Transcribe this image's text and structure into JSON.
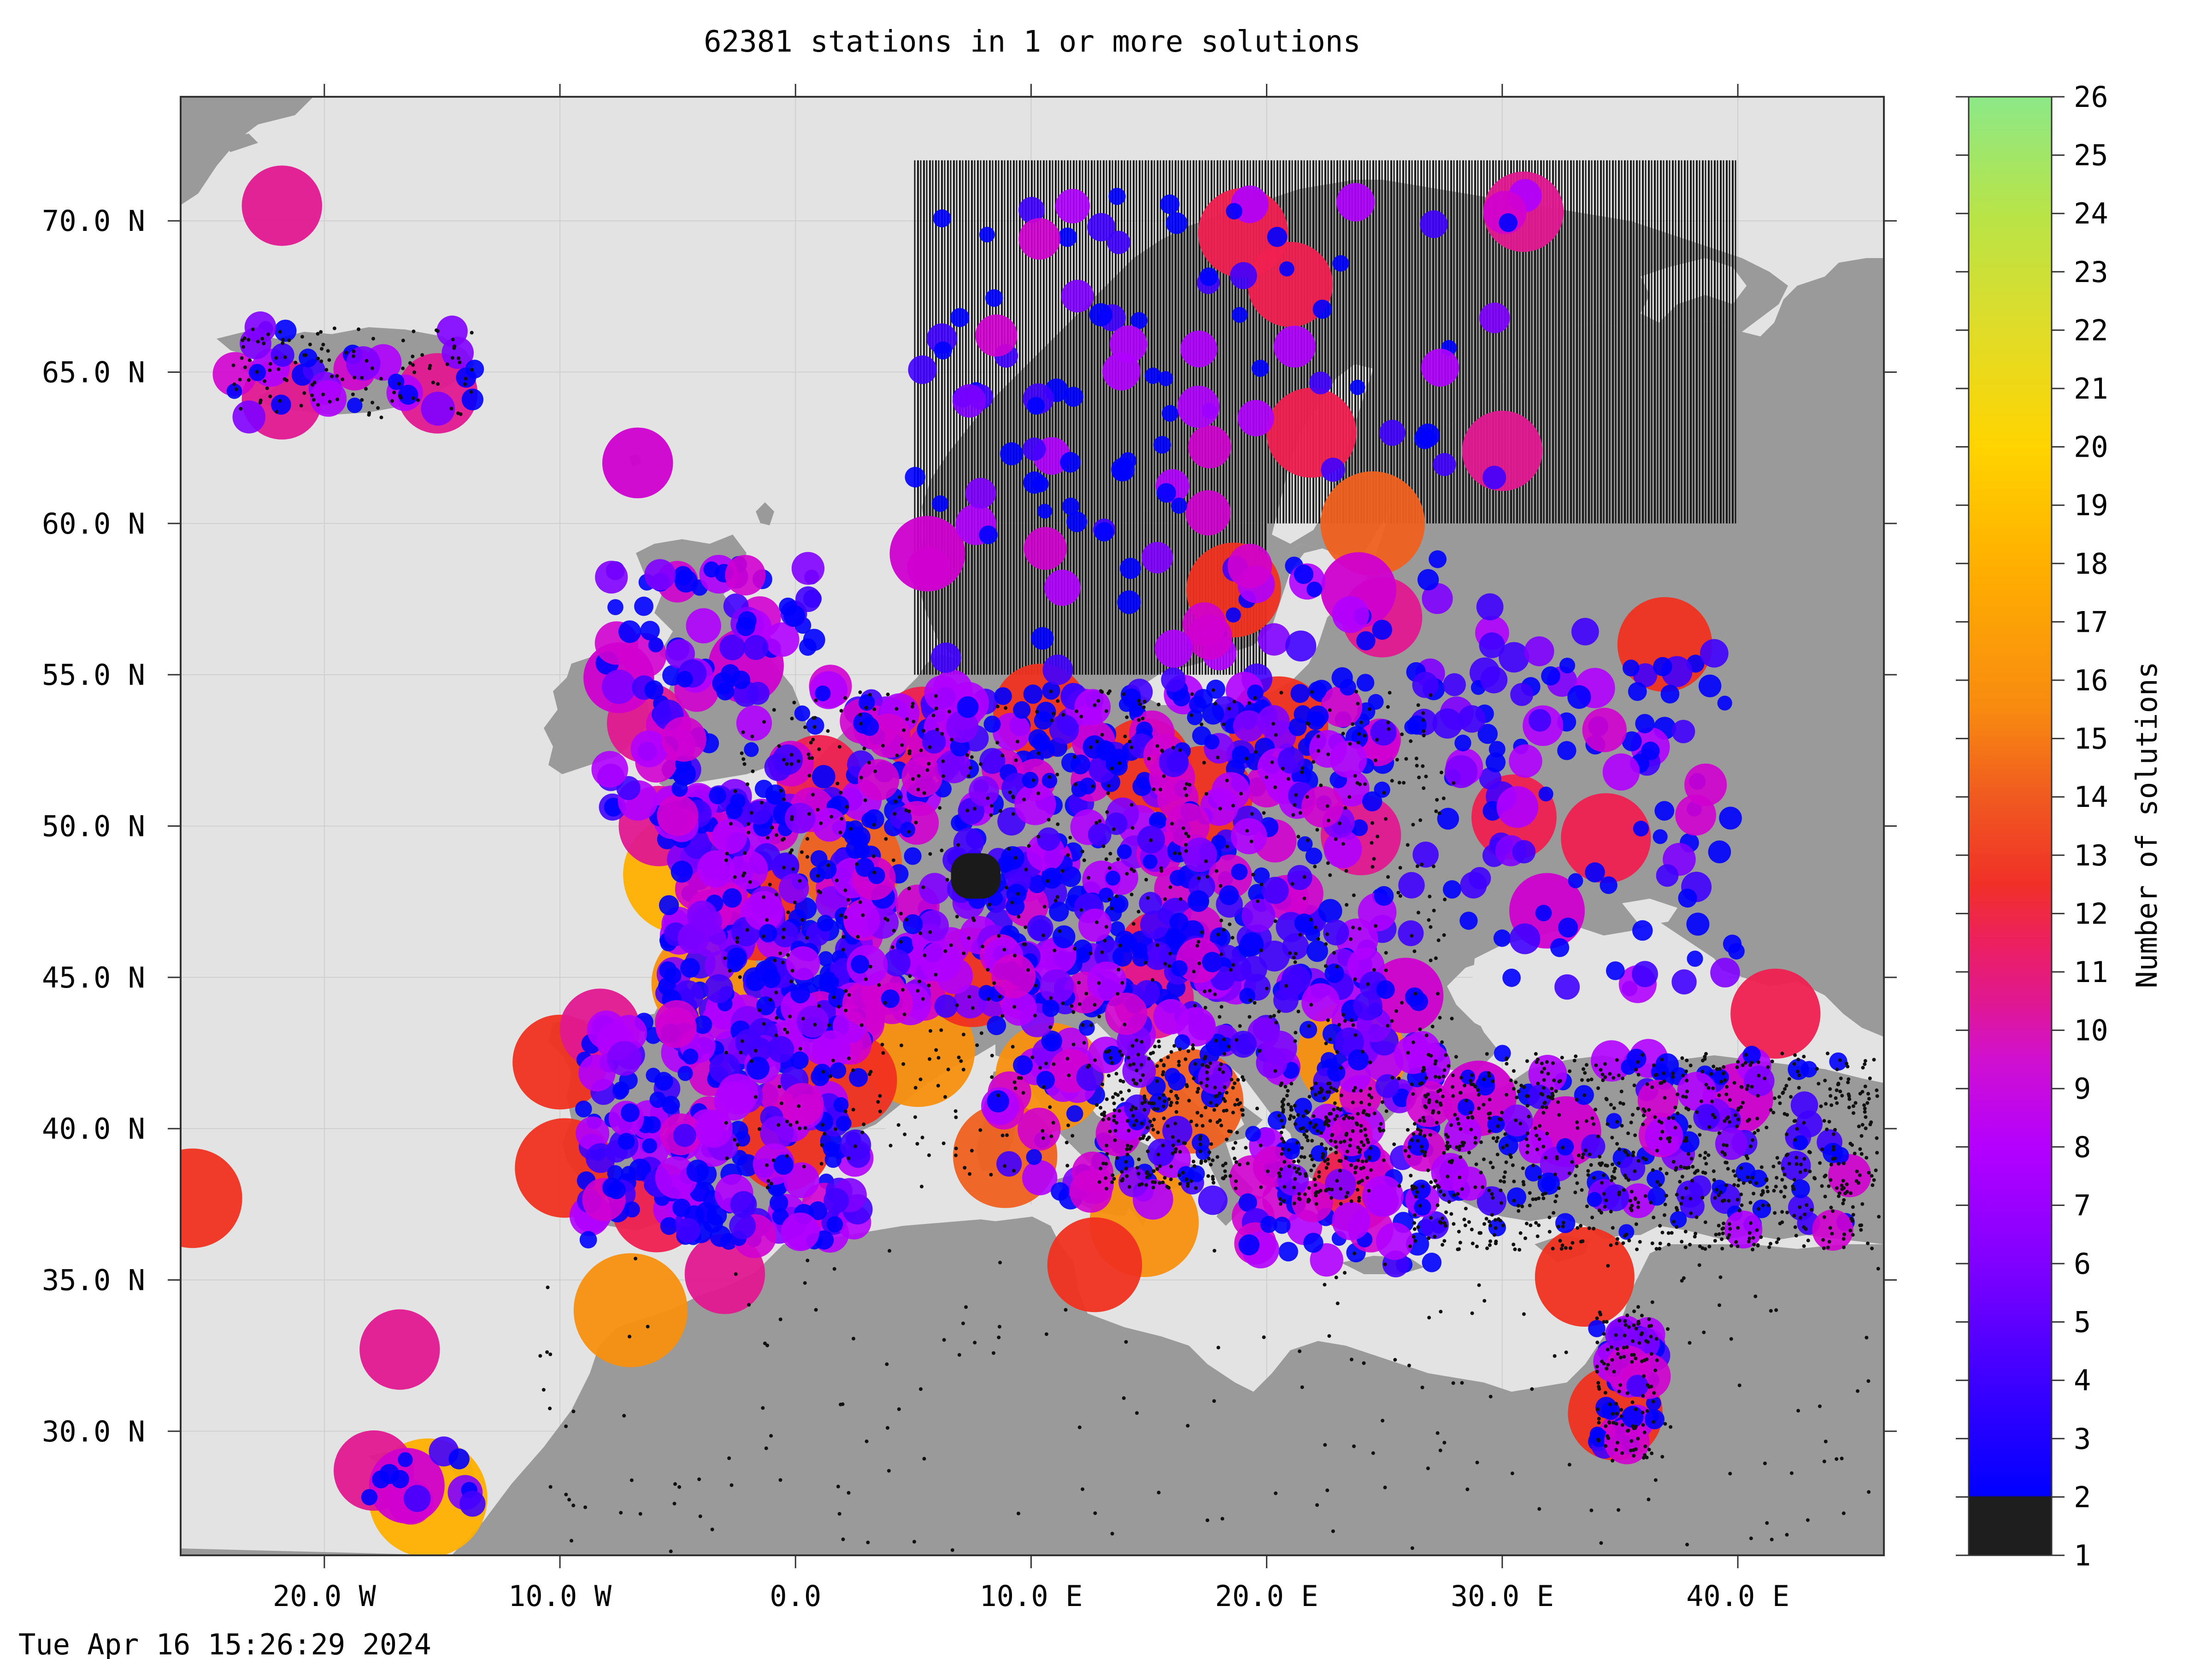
{
  "figure": {
    "title": "62381 stations in 1 or more solutions",
    "timestamp": "Tue Apr 16 15:26:29 2024"
  },
  "map": {
    "lon_range": [
      -26.1,
      46.2
    ],
    "lat_range": [
      25.9,
      74.1
    ],
    "x_ticks": [
      {
        "value": -20,
        "label": "20.0 W"
      },
      {
        "value": -10,
        "label": "10.0 W"
      },
      {
        "value": 0,
        "label": "0.0"
      },
      {
        "value": 10,
        "label": "10.0 E"
      },
      {
        "value": 20,
        "label": "20.0 E"
      },
      {
        "value": 30,
        "label": "30.0 E"
      },
      {
        "value": 40,
        "label": "40.0 E"
      }
    ],
    "y_ticks": [
      {
        "value": 30,
        "label": "30.0 N"
      },
      {
        "value": 35,
        "label": "35.0 N"
      },
      {
        "value": 40,
        "label": "40.0 N"
      },
      {
        "value": 45,
        "label": "45.0 N"
      },
      {
        "value": 50,
        "label": "50.0 N"
      },
      {
        "value": 55,
        "label": "55.0 N"
      },
      {
        "value": 60,
        "label": "60.0 N"
      },
      {
        "value": 65,
        "label": "65.0 N"
      },
      {
        "value": 70,
        "label": "70.0 N"
      }
    ],
    "colors": {
      "sea": "#e3e3e3",
      "land": "#9a9a9a",
      "grid": "#cfcfcf",
      "hatch": "#111111"
    },
    "hatched_region": {
      "lon": [
        5,
        40
      ],
      "lat": [
        60,
        72
      ]
    },
    "hatched_region_lower": {
      "lon": [
        5,
        20
      ],
      "lat": [
        55,
        60
      ]
    },
    "dense_cluster": {
      "lon": [
        6.6,
        8.7
      ],
      "lat": [
        47.6,
        49.1
      ]
    }
  },
  "colorbar": {
    "label": "Number of solutions",
    "min": 1,
    "max": 26,
    "ticks": [
      "1",
      "2",
      "3",
      "4",
      "5",
      "6",
      "7",
      "8",
      "9",
      "10",
      "11",
      "12",
      "13",
      "14",
      "15",
      "16",
      "17",
      "18",
      "19",
      "20",
      "21",
      "22",
      "23",
      "24",
      "25",
      "26"
    ],
    "stops": [
      "#222222",
      "#0000ff",
      "#4000ff",
      "#8000ff",
      "#b000ff",
      "#d000d0",
      "#e01890",
      "#f02050",
      "#f03020",
      "#f06020",
      "#f89010",
      "#ffb000",
      "#ffd000",
      "#e8e020",
      "#c0e040",
      "#90e880"
    ]
  },
  "stations_large": [
    {
      "lon": -21.8,
      "lat": 70.5,
      "n": 11
    },
    {
      "lon": -21.8,
      "lat": 64.1,
      "n": 11
    },
    {
      "lon": -15.2,
      "lat": 64.3,
      "n": 11
    },
    {
      "lon": -6.7,
      "lat": 62.0,
      "n": 9
    },
    {
      "lon": -25.6,
      "lat": 37.7,
      "n": 15
    },
    {
      "lon": -16.8,
      "lat": 32.7,
      "n": 11
    },
    {
      "lon": -17.9,
      "lat": 28.7,
      "n": 11
    },
    {
      "lon": -15.6,
      "lat": 27.8,
      "n": 19
    },
    {
      "lon": -16.5,
      "lat": 28.2,
      "n": 10
    },
    {
      "lon": -7.0,
      "lat": 34.0,
      "n": 18
    },
    {
      "lon": -3.0,
      "lat": 35.2,
      "n": 11
    },
    {
      "lon": -9.8,
      "lat": 38.7,
      "n": 15
    },
    {
      "lon": -10.0,
      "lat": 42.2,
      "n": 14
    },
    {
      "lon": -8.3,
      "lat": 43.3,
      "n": 11
    },
    {
      "lon": -4.8,
      "lat": 48.4,
      "n": 19
    },
    {
      "lon": -5.8,
      "lat": 50.0,
      "n": 11
    },
    {
      "lon": -6.3,
      "lat": 53.4,
      "n": 11
    },
    {
      "lon": -7.5,
      "lat": 54.9,
      "n": 9
    },
    {
      "lon": -2.1,
      "lat": 55.3,
      "n": 10
    },
    {
      "lon": 5.6,
      "lat": 59.0,
      "n": 10
    },
    {
      "lon": 12.7,
      "lat": 35.5,
      "n": 14
    },
    {
      "lon": 14.8,
      "lat": 36.9,
      "n": 17
    },
    {
      "lon": 8.9,
      "lat": 39.1,
      "n": 16
    },
    {
      "lon": 15.2,
      "lat": 44.3,
      "n": 11
    },
    {
      "lon": 33.5,
      "lat": 35.1,
      "n": 15
    },
    {
      "lon": 34.8,
      "lat": 30.6,
      "n": 14
    },
    {
      "lon": 41.6,
      "lat": 43.8,
      "n": 13
    },
    {
      "lon": 36.9,
      "lat": 56.0,
      "n": 14
    },
    {
      "lon": 34.4,
      "lat": 49.6,
      "n": 13
    },
    {
      "lon": 30.5,
      "lat": 50.3,
      "n": 12
    },
    {
      "lon": 24.5,
      "lat": 60.0,
      "n": 16
    },
    {
      "lon": 19.0,
      "lat": 69.6,
      "n": 13
    },
    {
      "lon": 21.0,
      "lat": 67.9,
      "n": 12
    },
    {
      "lon": 21.9,
      "lat": 63.0,
      "n": 13
    },
    {
      "lon": 30.9,
      "lat": 70.3,
      "n": 11
    },
    {
      "lon": 30.0,
      "lat": 62.4,
      "n": 11
    },
    {
      "lon": 18.6,
      "lat": 57.8,
      "n": 14
    },
    {
      "lon": 10.4,
      "lat": 53.8,
      "n": 14
    },
    {
      "lon": 5.4,
      "lat": 53.2,
      "n": 12
    },
    {
      "lon": 1.0,
      "lat": 51.6,
      "n": 12
    },
    {
      "lon": -3.8,
      "lat": 44.8,
      "n": 17
    },
    {
      "lon": 5.2,
      "lat": 42.6,
      "n": 18
    },
    {
      "lon": 10.8,
      "lat": 41.7,
      "n": 17
    },
    {
      "lon": 16.8,
      "lat": 40.9,
      "n": 16
    },
    {
      "lon": 23.6,
      "lat": 42.4,
      "n": 17
    },
    {
      "lon": 20.5,
      "lat": 53.3,
      "n": 15
    },
    {
      "lon": 14.8,
      "lat": 52.0,
      "n": 14
    },
    {
      "lon": 17.3,
      "lat": 51.0,
      "n": 15
    },
    {
      "lon": 24.0,
      "lat": 49.7,
      "n": 11
    },
    {
      "lon": 31.9,
      "lat": 47.2,
      "n": 10
    },
    {
      "lon": 40.0,
      "lat": 41.0,
      "n": 9
    },
    {
      "lon": 32.7,
      "lat": 39.9,
      "n": 9
    },
    {
      "lon": 29.0,
      "lat": 41.0,
      "n": 10
    },
    {
      "lon": 25.9,
      "lat": 44.4,
      "n": 10
    },
    {
      "lon": 15.5,
      "lat": 45.8,
      "n": 12
    },
    {
      "lon": 7.5,
      "lat": 45.0,
      "n": 15
    },
    {
      "lon": 2.3,
      "lat": 48.8,
      "n": 16
    },
    {
      "lon": -1.6,
      "lat": 47.2,
      "n": 15
    },
    {
      "lon": -0.5,
      "lat": 39.5,
      "n": 14
    },
    {
      "lon": 2.3,
      "lat": 41.6,
      "n": 14
    },
    {
      "lon": -5.9,
      "lat": 37.4,
      "n": 13
    },
    {
      "lon": 23.7,
      "lat": 38.0,
      "n": 12
    },
    {
      "lon": 24.9,
      "lat": 56.9,
      "n": 11
    },
    {
      "lon": 23.9,
      "lat": 57.8,
      "n": 10
    }
  ],
  "stations_small_clusters": [
    {
      "lon": [
        -5.5,
        3.0
      ],
      "lat": [
        42.5,
        51.0
      ],
      "count": 260
    },
    {
      "lon": [
        -9.0,
        2.8
      ],
      "lat": [
        36.2,
        43.6
      ],
      "count": 220
    },
    {
      "lon": [
        2.5,
        16.5
      ],
      "lat": [
        44.0,
        54.5
      ],
      "count": 320
    },
    {
      "lon": [
        16.0,
        25.0
      ],
      "lat": [
        44.5,
        55.0
      ],
      "count": 180
    },
    {
      "lon": [
        8.5,
        18.5
      ],
      "lat": [
        37.5,
        46.5
      ],
      "count": 140
    },
    {
      "lon": [
        19.0,
        28.0
      ],
      "lat": [
        35.5,
        45.0
      ],
      "count": 130
    },
    {
      "lon": [
        -8.0,
        1.5
      ],
      "lat": [
        50.0,
        58.8
      ],
      "count": 110
    },
    {
      "lon": [
        5.0,
        31.0
      ],
      "lat": [
        55.0,
        71.0
      ],
      "count": 130
    },
    {
      "lon": [
        26.0,
        40.0
      ],
      "lat": [
        44.5,
        56.5
      ],
      "count": 110
    },
    {
      "lon": [
        26.0,
        45.0
      ],
      "lat": [
        36.5,
        42.5
      ],
      "count": 110
    },
    {
      "lon": [
        34.0,
        36.5
      ],
      "lat": [
        29.5,
        33.5
      ],
      "count": 40
    },
    {
      "lon": [
        -24.0,
        -13.5
      ],
      "lat": [
        63.5,
        66.5
      ],
      "count": 30
    },
    {
      "lon": [
        -18.5,
        -13.3
      ],
      "lat": [
        27.5,
        29.5
      ],
      "count": 12
    }
  ],
  "black_dots_regions": [
    {
      "lon": [
        26.0,
        46.0
      ],
      "lat": [
        36.0,
        42.5
      ],
      "count": 900
    },
    {
      "lon": [
        -3.0,
        28.0
      ],
      "lat": [
        38.0,
        54.5
      ],
      "count": 900
    },
    {
      "lon": [
        -24.0,
        -13.5
      ],
      "lat": [
        63.5,
        66.5
      ],
      "count": 120
    },
    {
      "lon": [
        -11.0,
        46.0
      ],
      "lat": [
        26.0,
        36.0
      ],
      "count": 180
    },
    {
      "lon": [
        13.0,
        19.0
      ],
      "lat": [
        38.0,
        43.0
      ],
      "count": 220
    },
    {
      "lon": [
        20.5,
        24.5
      ],
      "lat": [
        37.5,
        41.5
      ],
      "count": 200
    },
    {
      "lon": [
        34.0,
        36.6
      ],
      "lat": [
        29.0,
        34.0
      ],
      "count": 120
    }
  ]
}
